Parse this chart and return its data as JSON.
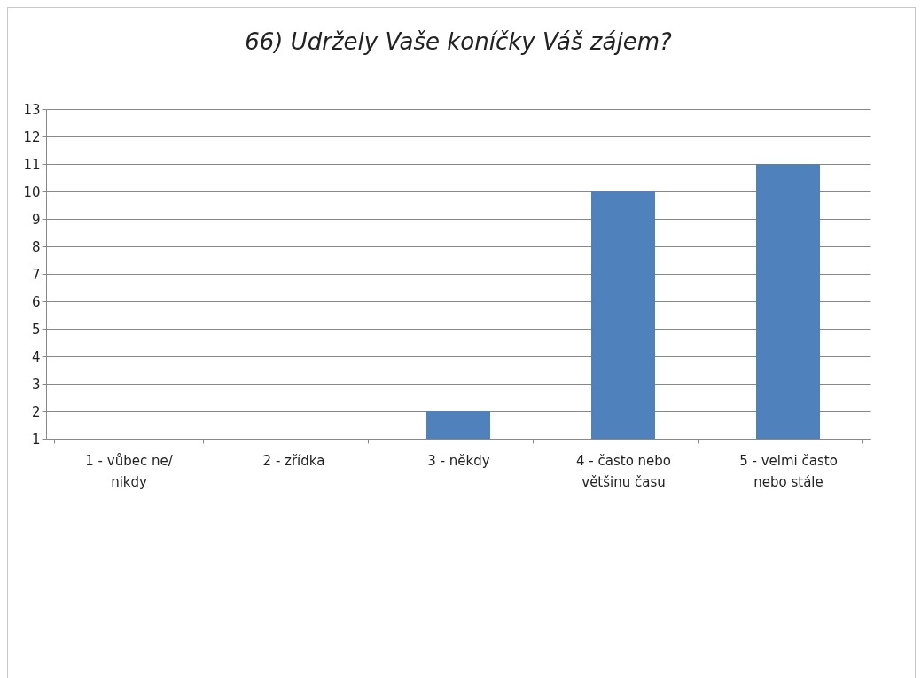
{
  "chart_data": {
    "type": "bar",
    "title": "66) Udržely Vaše koníčky Váš zájem?",
    "categories": [
      "1 - vůbec ne/ nikdy",
      "2 - zřídka",
      "3 - někdy",
      "4 - často nebo většinu času",
      "5 - velmi často nebo stále"
    ],
    "values": [
      1,
      1,
      2,
      10,
      11
    ],
    "color": "#4f81bd",
    "ylim": [
      1,
      13
    ],
    "yticks": [
      1,
      2,
      3,
      4,
      5,
      6,
      7,
      8,
      9,
      10,
      11,
      12,
      13
    ],
    "grid": "y"
  }
}
